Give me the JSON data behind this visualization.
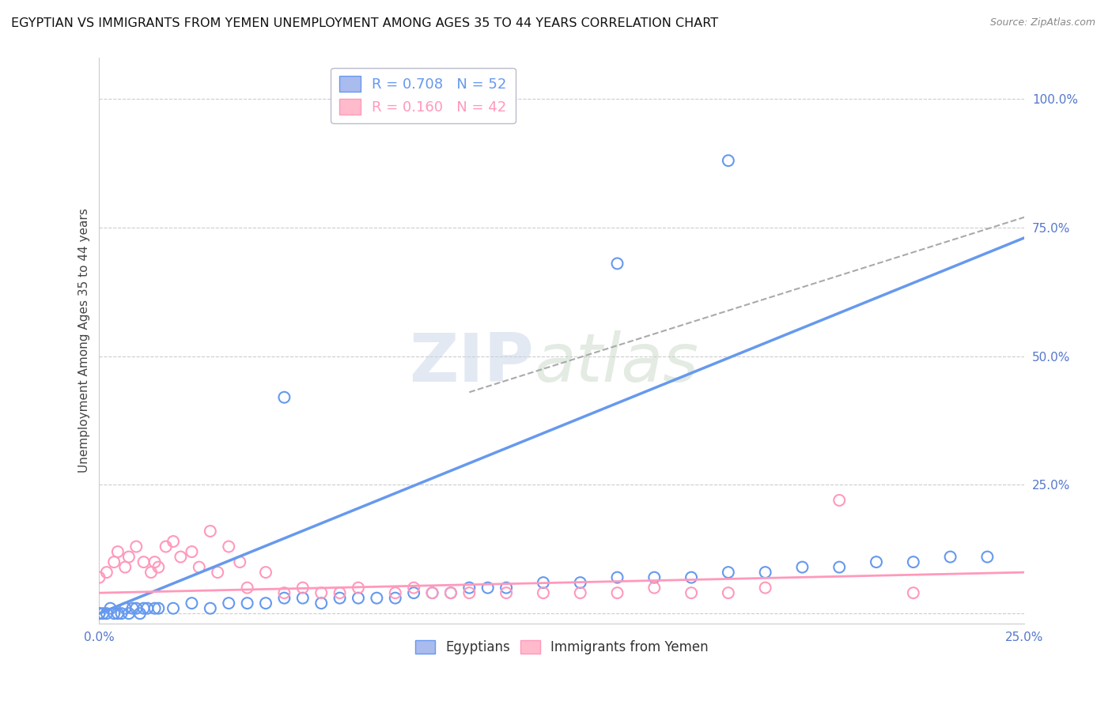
{
  "title": "EGYPTIAN VS IMMIGRANTS FROM YEMEN UNEMPLOYMENT AMONG AGES 35 TO 44 YEARS CORRELATION CHART",
  "source": "Source: ZipAtlas.com",
  "xlim": [
    0.0,
    0.25
  ],
  "ylim": [
    -0.02,
    1.08
  ],
  "ylabel": "Unemployment Among Ages 35 to 44 years",
  "ytick_vals": [
    0.0,
    0.25,
    0.5,
    0.75,
    1.0
  ],
  "ytick_labels": [
    "",
    "25.0%",
    "50.0%",
    "75.0%",
    "100.0%"
  ],
  "xtick_vals": [
    0.0,
    0.25
  ],
  "xtick_labels": [
    "0.0%",
    "25.0%"
  ],
  "egyptian_scatter": [
    [
      0.0,
      0.0
    ],
    [
      0.002,
      0.0
    ],
    [
      0.003,
      0.01
    ],
    [
      0.005,
      0.0
    ],
    [
      0.007,
      0.01
    ],
    [
      0.008,
      0.0
    ],
    [
      0.009,
      0.01
    ],
    [
      0.01,
      0.01
    ],
    [
      0.011,
      0.0
    ],
    [
      0.012,
      0.01
    ],
    [
      0.013,
      0.01
    ],
    [
      0.015,
      0.01
    ],
    [
      0.02,
      0.01
    ],
    [
      0.025,
      0.02
    ],
    [
      0.03,
      0.01
    ],
    [
      0.035,
      0.02
    ],
    [
      0.04,
      0.02
    ],
    [
      0.045,
      0.02
    ],
    [
      0.05,
      0.03
    ],
    [
      0.055,
      0.03
    ],
    [
      0.06,
      0.02
    ],
    [
      0.065,
      0.03
    ],
    [
      0.07,
      0.03
    ],
    [
      0.075,
      0.03
    ],
    [
      0.08,
      0.03
    ],
    [
      0.085,
      0.04
    ],
    [
      0.09,
      0.04
    ],
    [
      0.095,
      0.04
    ],
    [
      0.1,
      0.05
    ],
    [
      0.105,
      0.05
    ],
    [
      0.11,
      0.05
    ],
    [
      0.12,
      0.06
    ],
    [
      0.13,
      0.06
    ],
    [
      0.14,
      0.07
    ],
    [
      0.15,
      0.07
    ],
    [
      0.16,
      0.07
    ],
    [
      0.17,
      0.08
    ],
    [
      0.18,
      0.08
    ],
    [
      0.19,
      0.09
    ],
    [
      0.2,
      0.09
    ],
    [
      0.21,
      0.1
    ],
    [
      0.22,
      0.1
    ],
    [
      0.23,
      0.11
    ],
    [
      0.24,
      0.11
    ],
    [
      0.05,
      0.42
    ],
    [
      0.14,
      0.68
    ],
    [
      0.17,
      0.88
    ],
    [
      0.0,
      0.0
    ],
    [
      0.001,
      0.0
    ],
    [
      0.004,
      0.0
    ],
    [
      0.006,
      0.0
    ],
    [
      0.016,
      0.01
    ]
  ],
  "yemen_scatter": [
    [
      0.0,
      0.07
    ],
    [
      0.002,
      0.08
    ],
    [
      0.004,
      0.1
    ],
    [
      0.005,
      0.12
    ],
    [
      0.007,
      0.09
    ],
    [
      0.008,
      0.11
    ],
    [
      0.01,
      0.13
    ],
    [
      0.012,
      0.1
    ],
    [
      0.014,
      0.08
    ],
    [
      0.015,
      0.1
    ],
    [
      0.016,
      0.09
    ],
    [
      0.018,
      0.13
    ],
    [
      0.02,
      0.14
    ],
    [
      0.022,
      0.11
    ],
    [
      0.025,
      0.12
    ],
    [
      0.027,
      0.09
    ],
    [
      0.03,
      0.16
    ],
    [
      0.032,
      0.08
    ],
    [
      0.035,
      0.13
    ],
    [
      0.038,
      0.1
    ],
    [
      0.04,
      0.05
    ],
    [
      0.045,
      0.08
    ],
    [
      0.05,
      0.04
    ],
    [
      0.055,
      0.05
    ],
    [
      0.06,
      0.04
    ],
    [
      0.065,
      0.04
    ],
    [
      0.07,
      0.05
    ],
    [
      0.08,
      0.04
    ],
    [
      0.085,
      0.05
    ],
    [
      0.09,
      0.04
    ],
    [
      0.095,
      0.04
    ],
    [
      0.1,
      0.04
    ],
    [
      0.11,
      0.04
    ],
    [
      0.12,
      0.04
    ],
    [
      0.13,
      0.04
    ],
    [
      0.14,
      0.04
    ],
    [
      0.15,
      0.05
    ],
    [
      0.16,
      0.04
    ],
    [
      0.17,
      0.04
    ],
    [
      0.18,
      0.05
    ],
    [
      0.2,
      0.22
    ],
    [
      0.22,
      0.04
    ]
  ],
  "blue_line": {
    "x": [
      0.0,
      0.25
    ],
    "y": [
      0.0,
      0.73
    ]
  },
  "pink_line": {
    "x": [
      0.0,
      0.25
    ],
    "y": [
      0.04,
      0.08
    ]
  },
  "gray_dash_line": {
    "x": [
      0.1,
      0.25
    ],
    "y": [
      0.43,
      0.77
    ]
  },
  "watermark_zip": "ZIP",
  "watermark_atlas": "atlas",
  "background_color": "#ffffff",
  "grid_color": "#cccccc",
  "blue_color": "#6699ee",
  "pink_color": "#ff99bb",
  "scatter_size": 100,
  "title_fontsize": 11.5,
  "axis_label_fontsize": 11,
  "tick_color": "#5577cc"
}
